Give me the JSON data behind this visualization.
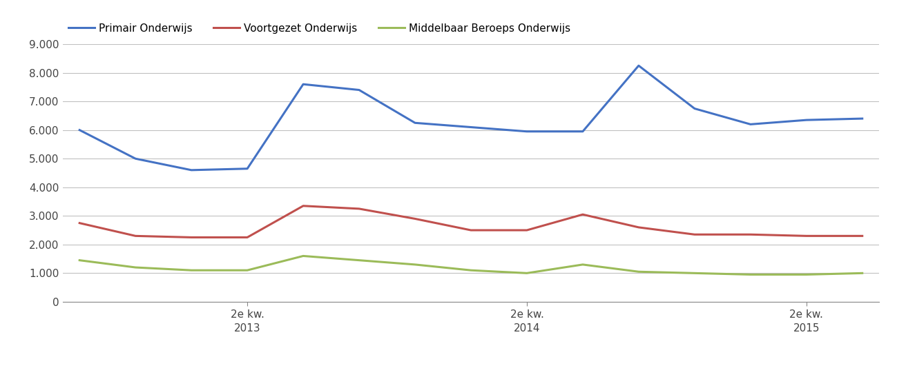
{
  "series": {
    "Primair Onderwijs": {
      "color": "#4472C4",
      "values": [
        6000,
        5000,
        4600,
        4650,
        7600,
        7400,
        6250,
        6100,
        5950,
        5950,
        8250,
        6750,
        6200,
        6350,
        6400
      ]
    },
    "Voortgezet Onderwijs": {
      "color": "#C0504D",
      "values": [
        2750,
        2300,
        2250,
        2250,
        3350,
        3250,
        2900,
        2500,
        2500,
        3050,
        2600,
        2350,
        2350,
        2300,
        2300
      ]
    },
    "Middelbaar Beroeps Onderwijs": {
      "color": "#9BBB59",
      "values": [
        1450,
        1200,
        1100,
        1100,
        1600,
        1450,
        1300,
        1100,
        1000,
        1300,
        1050,
        1000,
        950,
        950,
        1000
      ]
    }
  },
  "x_values": [
    0,
    1,
    2,
    3,
    4,
    5,
    6,
    7,
    8,
    9,
    10,
    11,
    12,
    13,
    14
  ],
  "x_tick_positions": [
    3,
    8,
    13
  ],
  "x_tick_labels": [
    "2e kw.\n2013",
    "2e kw.\n2014",
    "2e kw.\n2015"
  ],
  "ylim": [
    0,
    9000
  ],
  "yticks": [
    0,
    1000,
    2000,
    3000,
    4000,
    5000,
    6000,
    7000,
    8000,
    9000
  ],
  "ytick_labels": [
    "0",
    "1.000",
    "2.000",
    "3.000",
    "4.000",
    "5.000",
    "6.000",
    "7.000",
    "8.000",
    "9.000"
  ],
  "legend_entries": [
    "Primair Onderwijs",
    "Voortgezet Onderwijs",
    "Middelbaar Beroeps Onderwijs"
  ],
  "background_color": "#FFFFFF",
  "grid_color": "#C0C0C0",
  "line_width": 2.2
}
